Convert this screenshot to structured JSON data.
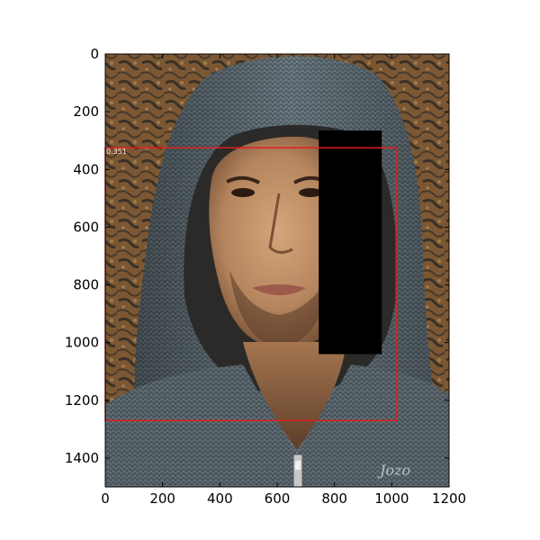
{
  "plot": {
    "type": "image",
    "xlim": [
      0,
      1200
    ],
    "ylim": [
      1500,
      0
    ],
    "x_ticks": [
      0,
      200,
      400,
      600,
      800,
      1000,
      1200
    ],
    "y_ticks": [
      0,
      200,
      400,
      600,
      800,
      1000,
      1200,
      1400
    ],
    "x_tick_labels": [
      "0",
      "200",
      "400",
      "600",
      "800",
      "1000",
      "1200"
    ],
    "y_tick_labels": [
      "0",
      "200",
      "400",
      "600",
      "800",
      "1000",
      "1200",
      "1400"
    ]
  },
  "detection": {
    "box": {
      "x0": 0,
      "y0": 325,
      "x1": 1015,
      "y1": 1270
    },
    "score_label": "0.351",
    "color": "#e02020"
  },
  "mask": {
    "box": {
      "x0": 745,
      "y0": 265,
      "x1": 965,
      "y1": 1040
    },
    "color": "#000000"
  },
  "watermark": {
    "text": "Jozo"
  },
  "photo": {
    "subject": "man in grey knitted hood",
    "colors": {
      "bark": "#8a6238",
      "bark_dark": "#3e3428",
      "knit": "#6b7a82",
      "knit_dark": "#3d474d",
      "skin": "#c4936a",
      "skin_shadow": "#7a5236"
    }
  }
}
